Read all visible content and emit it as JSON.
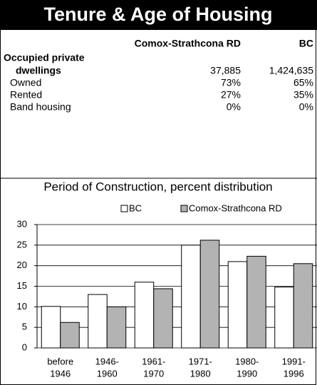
{
  "title": "Tenure & Age of Housing",
  "table": {
    "columns": [
      "Comox-Strathcona RD",
      "BC"
    ],
    "rows": [
      {
        "label": [
          "Occupied private",
          "dwellings"
        ],
        "values": [
          "37,885",
          "1,424,635"
        ]
      },
      {
        "label": [
          "Owned"
        ],
        "values": [
          "73%",
          "65%"
        ]
      },
      {
        "label": [
          "Rented"
        ],
        "values": [
          "27%",
          "35%"
        ]
      },
      {
        "label": [
          "Band housing"
        ],
        "values": [
          "0%",
          "0%"
        ]
      }
    ]
  },
  "chart_data": {
    "type": "bar",
    "title": "Period of Construction, percent distribution",
    "categories": [
      [
        "before",
        "1946"
      ],
      [
        "1946-",
        "1960"
      ],
      [
        "1961-",
        "1970"
      ],
      [
        "1971-",
        "1980"
      ],
      [
        "1980-",
        "1990"
      ],
      [
        "1991-",
        "1996"
      ]
    ],
    "series": [
      {
        "name": "BC",
        "color": "#ffffff",
        "values": [
          10.1,
          13,
          16,
          25,
          21,
          14.8
        ]
      },
      {
        "name": "Comox-Strathcona RD",
        "color": "#b3b3b3",
        "values": [
          6.2,
          10,
          14.4,
          26.2,
          22.3,
          20.5
        ]
      }
    ],
    "ylim": [
      0,
      30
    ],
    "yticks": [
      0,
      5,
      10,
      15,
      20,
      25,
      30
    ],
    "grid": true
  }
}
